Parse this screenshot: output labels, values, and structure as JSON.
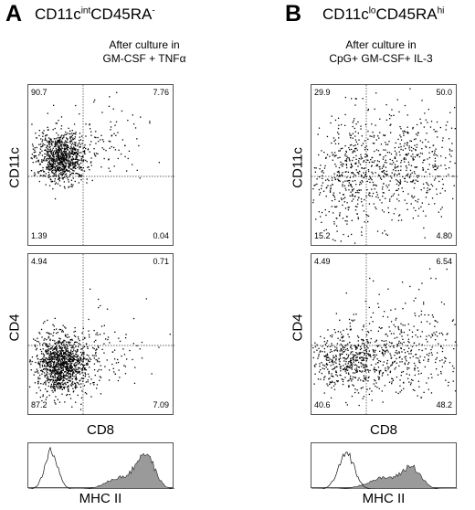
{
  "panels": [
    {
      "letter": "A",
      "title_base": "CD11c",
      "title_sup1": "int",
      "title_mid": "CD45RA",
      "title_sup2": "-",
      "condition_line1": "After culture in",
      "condition_line2": "GM-CSF + TNFα",
      "top_plot": {
        "ylabel": "CD11c",
        "q_tl": "90.7",
        "q_tr": "7.76",
        "q_bl": "1.39",
        "q_br": "0.04"
      },
      "bottom_plot": {
        "ylabel": "CD4",
        "q_tl": "4.94",
        "q_tr": "0.71",
        "q_bl": "87.2",
        "q_br": "7.09"
      },
      "xlabel": "CD8",
      "hist_label": "MHC II"
    },
    {
      "letter": "B",
      "title_base": "CD11c",
      "title_sup1": "lo",
      "title_mid": "CD45RA",
      "title_sup2": "hi",
      "condition_line1": "After culture in",
      "condition_line2": "CpG+ GM-CSF+ IL-3",
      "top_plot": {
        "ylabel": "CD11c",
        "q_tl": "29.9",
        "q_tr": "50.0",
        "q_bl": "15.2",
        "q_br": "4.80"
      },
      "bottom_plot": {
        "ylabel": "CD4",
        "q_tl": "4.49",
        "q_tr": "6.54",
        "q_bl": "40.6",
        "q_br": "48.2"
      },
      "xlabel": "CD8",
      "hist_label": "MHC II"
    }
  ],
  "colors": {
    "dots": "#000000",
    "hist_fill": "#9a9a9a",
    "gate_line": "#333333"
  }
}
